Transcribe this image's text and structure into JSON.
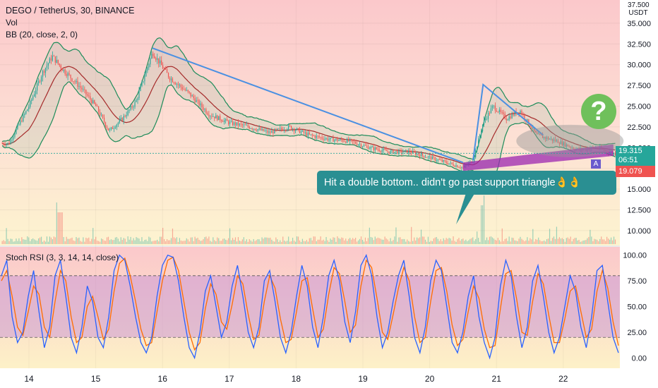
{
  "header": {
    "symbol_line": "DEGO / TetherUS, 30, BINANCE",
    "vol_label": "Vol",
    "bb_label": "BB (20, close, 2, 0)",
    "stoch_label": "Stoch RSI (3, 3, 14, 14, close)",
    "currency": "USDT",
    "top_tick": "37.500"
  },
  "badges": {
    "price": "19.315",
    "countdown": "06:51",
    "low": "19.079",
    "marker": "A"
  },
  "annotation": {
    "text": "Hit a double bottom.. didn't go past support triangle👌👌",
    "question": "?"
  },
  "colors": {
    "bull": "#26a69a",
    "bear": "#ef5350",
    "bb_band": "#1e8c5a",
    "bb_basis": "#a52a2a",
    "trendline": "#4a90e2",
    "support_fill": "#9c27b0",
    "stoch_k": "#2962ff",
    "stoch_d": "#ff6d00",
    "stoch_band": "#c08ad8"
  },
  "chart_data": [
    {
      "type": "candlestick",
      "title": "DEGO / TetherUS, 30, BINANCE",
      "xlabel": "",
      "ylabel": "",
      "x_ticks": [
        "14",
        "15",
        "16",
        "17",
        "18",
        "19",
        "20",
        "21",
        "22"
      ],
      "y_ticks": [
        "10.000",
        "12.500",
        "15.000",
        "17.500",
        "20.000",
        "22.500",
        "25.000",
        "27.500",
        "30.000",
        "32.500",
        "35.000"
      ],
      "ylim": [
        8.2,
        37.8
      ],
      "x_range_days": [
        13.6,
        22.8
      ],
      "approx_close_path": [
        {
          "x": 13.7,
          "y": 20.5
        },
        {
          "x": 14.0,
          "y": 25.0
        },
        {
          "x": 14.2,
          "y": 29.0
        },
        {
          "x": 14.35,
          "y": 31.0
        },
        {
          "x": 14.5,
          "y": 29.5
        },
        {
          "x": 14.8,
          "y": 27.0
        },
        {
          "x": 15.0,
          "y": 25.0
        },
        {
          "x": 15.2,
          "y": 22.0
        },
        {
          "x": 15.4,
          "y": 23.5
        },
        {
          "x": 15.6,
          "y": 25.5
        },
        {
          "x": 15.85,
          "y": 31.5
        },
        {
          "x": 16.1,
          "y": 28.5
        },
        {
          "x": 16.4,
          "y": 26.5
        },
        {
          "x": 16.7,
          "y": 24.0
        },
        {
          "x": 17.0,
          "y": 23.0
        },
        {
          "x": 17.3,
          "y": 22.5
        },
        {
          "x": 17.6,
          "y": 21.8
        },
        {
          "x": 17.9,
          "y": 22.5
        },
        {
          "x": 18.2,
          "y": 21.5
        },
        {
          "x": 18.5,
          "y": 21.0
        },
        {
          "x": 18.8,
          "y": 20.8
        },
        {
          "x": 19.1,
          "y": 20.0
        },
        {
          "x": 19.4,
          "y": 19.5
        },
        {
          "x": 19.7,
          "y": 19.5
        },
        {
          "x": 20.0,
          "y": 18.8
        },
        {
          "x": 20.25,
          "y": 18.2
        },
        {
          "x": 20.5,
          "y": 17.6
        },
        {
          "x": 20.65,
          "y": 18.5
        },
        {
          "x": 20.8,
          "y": 23.0
        },
        {
          "x": 20.95,
          "y": 25.0
        },
        {
          "x": 21.15,
          "y": 23.5
        },
        {
          "x": 21.35,
          "y": 24.5
        },
        {
          "x": 21.6,
          "y": 21.5
        },
        {
          "x": 21.9,
          "y": 20.8
        },
        {
          "x": 22.2,
          "y": 19.8
        },
        {
          "x": 22.5,
          "y": 20.0
        },
        {
          "x": 22.75,
          "y": 19.3
        }
      ],
      "overlays": {
        "descending_resistance": [
          {
            "x": 15.85,
            "y": 32.0
          },
          {
            "x": 20.5,
            "y": 18.2
          }
        ],
        "second_resistance": [
          {
            "x": 20.65,
            "y": 18.5
          },
          {
            "x": 20.8,
            "y": 27.6
          },
          {
            "x": 21.7,
            "y": 21.5
          }
        ],
        "support_band_low": [
          {
            "x": 20.5,
            "y": 17.2
          },
          {
            "x": 22.75,
            "y": 19.0
          }
        ],
        "support_band_high": [
          {
            "x": 20.5,
            "y": 18.2
          },
          {
            "x": 22.75,
            "y": 20.4
          }
        ]
      }
    },
    {
      "type": "line",
      "title": "Stoch RSI (3, 3, 14, 14, close)",
      "y_ticks": [
        "0.00",
        "25.00",
        "50.00",
        "75.00",
        "100.00"
      ],
      "ylim": [
        -10,
        108
      ],
      "bands": [
        20,
        80
      ],
      "series": [
        {
          "name": "K",
          "values": [
            80,
            95,
            40,
            15,
            25,
            60,
            85,
            45,
            10,
            30,
            80,
            95,
            60,
            20,
            5,
            30,
            70,
            55,
            20,
            10,
            40,
            85,
            100,
            95,
            70,
            40,
            15,
            5,
            20,
            60,
            90,
            100,
            98,
            75,
            40,
            10,
            0,
            25,
            65,
            80,
            50,
            20,
            35,
            70,
            90,
            60,
            25,
            10,
            30,
            75,
            85,
            55,
            20,
            5,
            25,
            60,
            90,
            70,
            30,
            10,
            40,
            80,
            95,
            75,
            35,
            15,
            45,
            90,
            100,
            80,
            40,
            10,
            25,
            55,
            80,
            95,
            60,
            20,
            5,
            30,
            75,
            95,
            85,
            50,
            15,
            5,
            25,
            60,
            80,
            40,
            15,
            0,
            20,
            70,
            95,
            80,
            40,
            10,
            30,
            75,
            90,
            60,
            25,
            5,
            20,
            50,
            80,
            65,
            30,
            10,
            40,
            85,
            90,
            55,
            20,
            5
          ]
        },
        {
          "name": "D",
          "values": [
            75,
            85,
            60,
            30,
            22,
            45,
            70,
            62,
            30,
            20,
            55,
            85,
            75,
            40,
            15,
            20,
            50,
            60,
            40,
            18,
            28,
            65,
            92,
            97,
            80,
            55,
            28,
            12,
            15,
            45,
            75,
            95,
            98,
            85,
            55,
            25,
            8,
            15,
            48,
            72,
            62,
            35,
            28,
            52,
            80,
            72,
            42,
            18,
            22,
            55,
            80,
            68,
            38,
            15,
            18,
            45,
            75,
            78,
            48,
            20,
            28,
            62,
            88,
            82,
            55,
            25,
            32,
            70,
            95,
            88,
            58,
            25,
            18,
            42,
            68,
            88,
            75,
            40,
            15,
            20,
            55,
            85,
            88,
            65,
            32,
            12,
            18,
            45,
            70,
            58,
            28,
            10,
            12,
            48,
            82,
            85,
            58,
            25,
            22,
            55,
            82,
            72,
            42,
            15,
            15,
            38,
            65,
            70,
            45,
            20,
            28,
            65,
            85,
            68,
            35,
            12
          ]
        }
      ]
    }
  ]
}
